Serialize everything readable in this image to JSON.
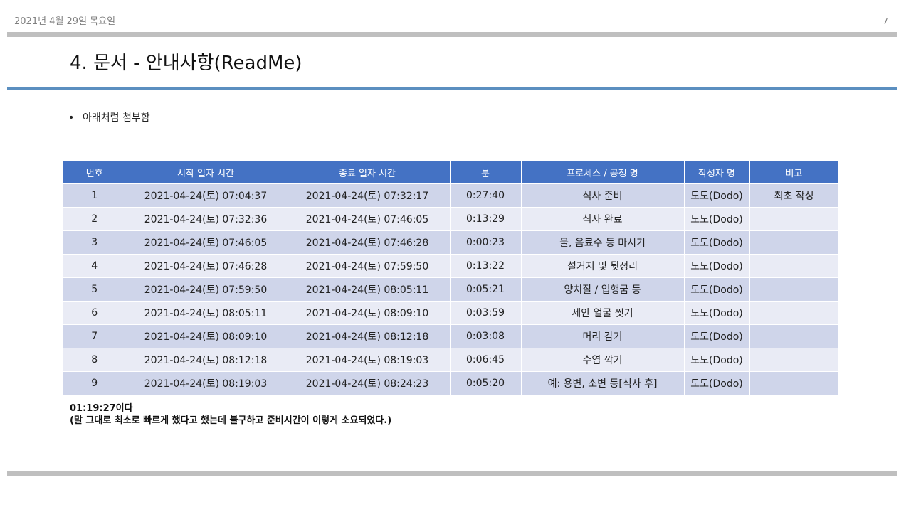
{
  "header": {
    "date": "2021년 4월 29일 목요일",
    "page_number": "7"
  },
  "title": "4. 문서 - 안내사항(ReadMe)",
  "bullet": {
    "symbol": "•",
    "text": "아래처럼 첨부함"
  },
  "table": {
    "headers": [
      "번호",
      "시작 일자 시간",
      "종료 일자 시간",
      "분",
      "프로세스 / 공정 명",
      "작성자 명",
      "비고"
    ],
    "rows": [
      [
        "1",
        "2021-04-24(토)  07:04:37",
        "2021-04-24(토)  07:32:17",
        "0:27:40",
        "식사 준비",
        "도도(Dodo)",
        "최초 작성"
      ],
      [
        "2",
        "2021-04-24(토)  07:32:36",
        "2021-04-24(토)  07:46:05",
        "0:13:29",
        "식사 완료",
        "도도(Dodo)",
        ""
      ],
      [
        "3",
        "2021-04-24(토)  07:46:05",
        "2021-04-24(토)  07:46:28",
        "0:00:23",
        "물, 음료수 등 마시기",
        "도도(Dodo)",
        ""
      ],
      [
        "4",
        "2021-04-24(토)  07:46:28",
        "2021-04-24(토)  07:59:50",
        "0:13:22",
        "설거지 및 뒷정리",
        "도도(Dodo)",
        ""
      ],
      [
        "5",
        "2021-04-24(토)  07:59:50",
        "2021-04-24(토)  08:05:11",
        "0:05:21",
        "양치질 / 입행굼 등",
        "도도(Dodo)",
        ""
      ],
      [
        "6",
        "2021-04-24(토)  08:05:11",
        "2021-04-24(토)  08:09:10",
        "0:03:59",
        "세안 얼굴 씻기",
        "도도(Dodo)",
        ""
      ],
      [
        "7",
        "2021-04-24(토)  08:09:10",
        "2021-04-24(토)  08:12:18",
        "0:03:08",
        "머리 감기",
        "도도(Dodo)",
        ""
      ],
      [
        "8",
        "2021-04-24(토)  08:12:18",
        "2021-04-24(토)  08:19:03",
        "0:06:45",
        "수염 깍기",
        "도도(Dodo)",
        ""
      ],
      [
        "9",
        "2021-04-24(토)  08:19:03",
        "2021-04-24(토)  08:24:23",
        "0:05:20",
        "예: 용변, 소변 등[식사 후]",
        "도도(Dodo)",
        ""
      ]
    ]
  },
  "note": {
    "line1": "01:19:27이다",
    "line2": "(말 그대로 최소로 빠르게 했다고 했는데 불구하고 준비시간이 이렇게 소요되었다.)"
  },
  "colors": {
    "header_bg": "#4472c4",
    "row_odd": "#cfd5ea",
    "row_even": "#e9ebf5",
    "rule": "#5b8fc0",
    "bar": "#bfbfbf"
  }
}
